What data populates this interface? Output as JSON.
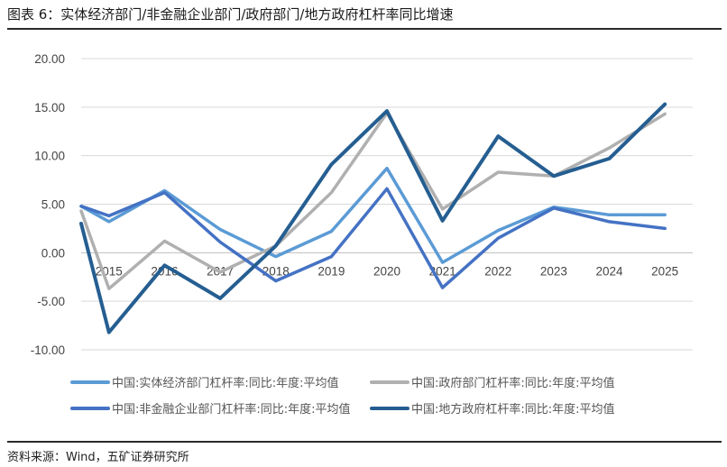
{
  "page": {
    "title": "图表 6：实体经济部门/非金融企业部门/政府部门/地方政府杠杆率同比增速",
    "source": "资料来源：Wind，五矿证券研究所"
  },
  "chart_data": {
    "type": "line",
    "title": "图表 6：实体经济部门/非金融企业部门/政府部门/地方政府杠杆率同比增速",
    "xlabel": "",
    "ylabel": "",
    "ylim": [
      -10,
      20
    ],
    "yticks": [
      -10,
      -5,
      0,
      5,
      10,
      15,
      20
    ],
    "ytick_labels": [
      "-10.00",
      "-5.00",
      "0.00",
      "5.00",
      "10.00",
      "15.00",
      "20.00"
    ],
    "x": [
      2014.5,
      2015,
      2016,
      2017,
      2018,
      2019,
      2020,
      2021,
      2022,
      2023,
      2024,
      2025
    ],
    "xtick_labels": [
      "2015",
      "2016",
      "2017",
      "2018",
      "2019",
      "2020",
      "2021",
      "2022",
      "2023",
      "2024",
      "2025"
    ],
    "grid": "horizontal",
    "legend_position": "bottom",
    "series": [
      {
        "name": "中国:实体经济部门杠杆率:同比:年度:平均值",
        "color": "#5b9bd5",
        "values": [
          4.8,
          3.2,
          6.4,
          2.4,
          -0.4,
          2.2,
          8.7,
          -1.0,
          2.3,
          4.7,
          3.9,
          3.9
        ]
      },
      {
        "name": "中国:政府部门杠杆率:同比:年度:平均值",
        "color": "#b0b0b0",
        "values": [
          4.3,
          -3.7,
          1.2,
          -2.0,
          0.7,
          6.2,
          14.4,
          4.5,
          8.3,
          7.9,
          10.8,
          14.3
        ]
      },
      {
        "name": "中国:非金融企业部门杠杆率:同比:年度:平均值",
        "color": "#4472c4",
        "values": [
          4.8,
          3.8,
          6.2,
          1.1,
          -2.9,
          -0.4,
          6.6,
          -3.6,
          1.5,
          4.6,
          3.2,
          2.5
        ]
      },
      {
        "name": "中国:地方政府杠杆率:同比:年度:平均值",
        "color": "#255e91",
        "values": [
          3.0,
          -8.2,
          -1.3,
          -4.7,
          0.7,
          9.1,
          14.6,
          3.3,
          12.0,
          7.9,
          9.7,
          15.3
        ]
      }
    ]
  }
}
